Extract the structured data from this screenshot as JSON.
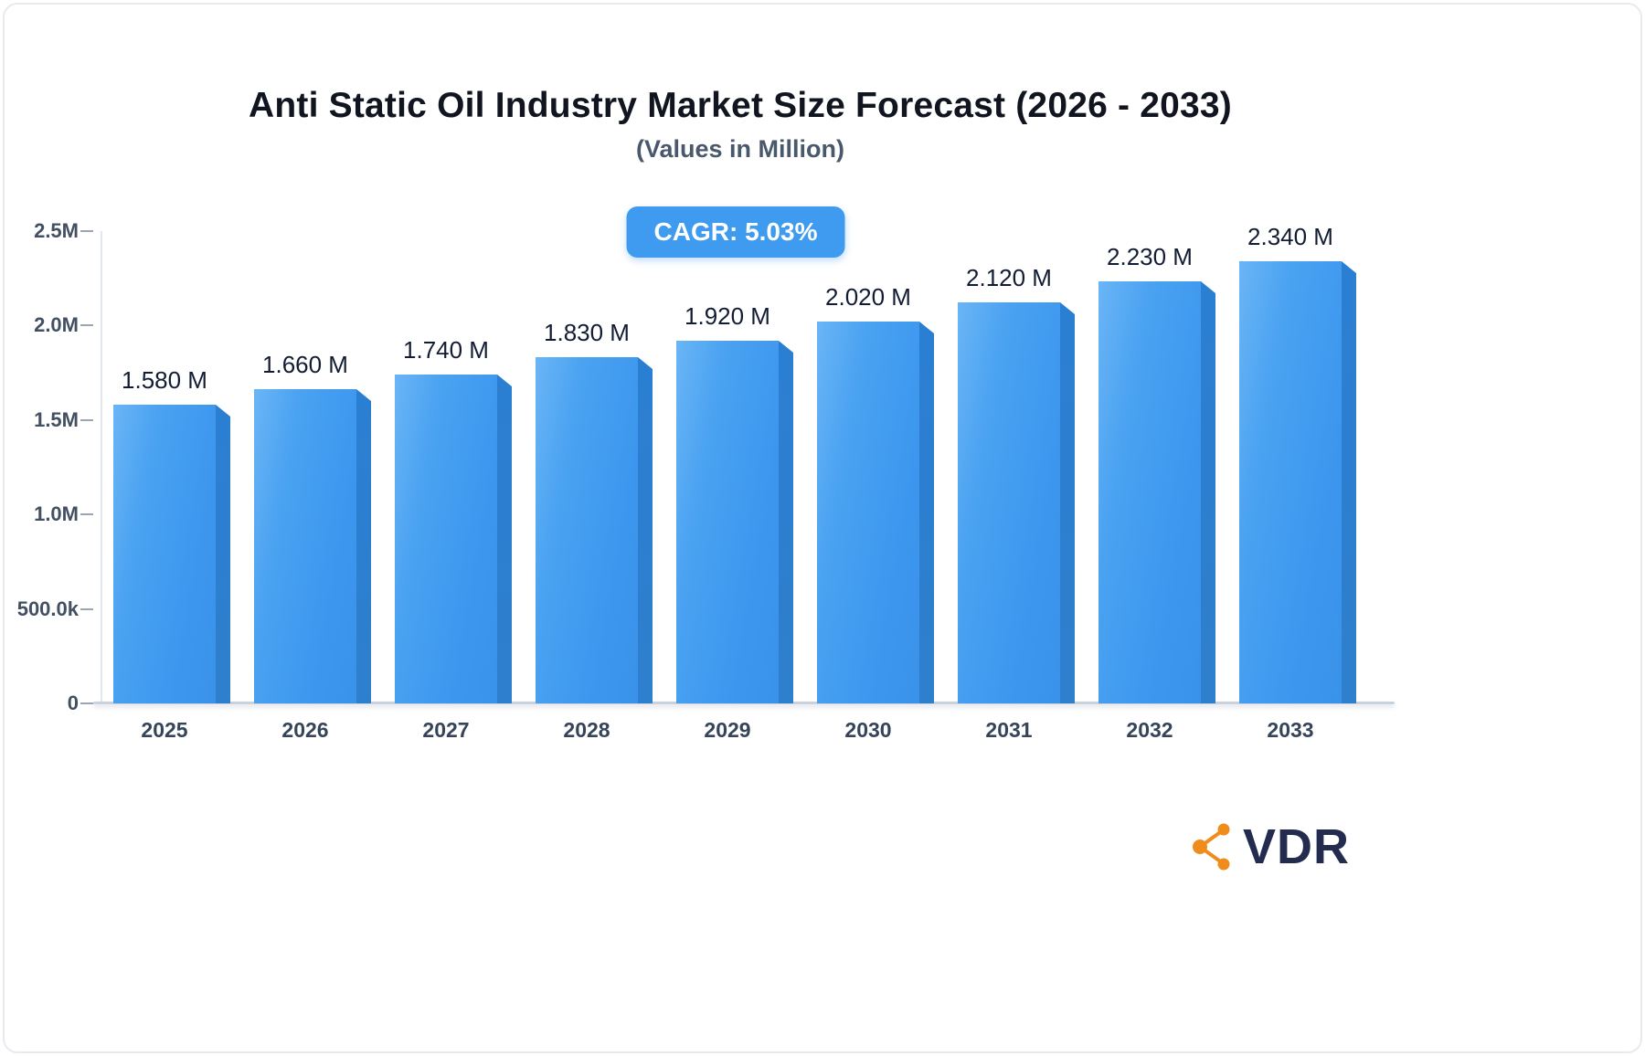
{
  "header": {
    "title": "Anti Static Oil Industry Market Size Forecast (2026 - 2033)",
    "subtitle": "(Values in Million)"
  },
  "badge": {
    "label": "CAGR: 5.03%"
  },
  "footer": {
    "brand": "VDR"
  },
  "chart_data": {
    "type": "bar",
    "title": "Anti Static Oil Industry Market Size Forecast (2026 - 2033)",
    "subtitle": "(Values in Million)",
    "annotation": "CAGR: 5.03%",
    "unit": "Million",
    "categories": [
      "2025",
      "2026",
      "2027",
      "2028",
      "2029",
      "2030",
      "2031",
      "2032",
      "2033"
    ],
    "values": [
      1.58,
      1.66,
      1.74,
      1.83,
      1.92,
      2.02,
      2.12,
      2.23,
      2.34
    ],
    "value_labels": [
      "1.580 M",
      "1.660 M",
      "1.740 M",
      "1.830 M",
      "1.920 M",
      "2.020 M",
      "2.120 M",
      "2.230 M",
      "2.340 M"
    ],
    "ylim": [
      0,
      2.5
    ],
    "yticks": [
      {
        "v": 2.5,
        "label": "2.5M"
      },
      {
        "v": 2.0,
        "label": "2.0M"
      },
      {
        "v": 1.5,
        "label": "1.5M"
      },
      {
        "v": 1.0,
        "label": "1.0M"
      },
      {
        "v": 0.5,
        "label": "500.0k"
      },
      {
        "v": 0.0,
        "label": "0"
      }
    ],
    "grid": false,
    "legend": false,
    "colors": {
      "bar_front": "#3d97ee",
      "bar_front_light": "#6ab5f6",
      "bar_side": "#2b7fd2",
      "badge_bg": "#3f9bf0",
      "axis": "#e2e7ee",
      "baseline": "#c9d1db",
      "value_label": "#121d33",
      "tick_label": "#425062",
      "brand_orange": "#f08c1c",
      "brand_navy": "#232c4e"
    }
  }
}
